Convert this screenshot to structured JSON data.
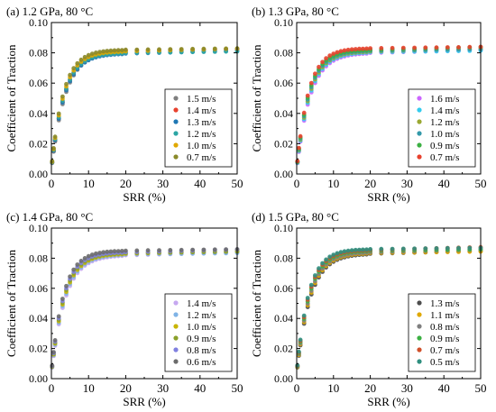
{
  "chart_data": [
    {
      "type": "scatter",
      "title": "(a) 1.2 GPa, 80 °C",
      "xlabel": "SRR (%)",
      "ylabel": "Coefficient of Traction",
      "xlim": [
        0,
        50
      ],
      "ylim": [
        0.0,
        0.1
      ],
      "xticks": [
        "0",
        "10",
        "20",
        "30",
        "40",
        "50"
      ],
      "yticks": [
        "0.00",
        "0.02",
        "0.04",
        "0.06",
        "0.08",
        "0.10"
      ],
      "legend_position": "bottom-right",
      "series": [
        {
          "name": "1.5 m/s",
          "color": "#7f7f7f",
          "plateau": 0.0805
        },
        {
          "name": "1.4 m/s",
          "color": "#e8412e",
          "plateau": 0.0815
        },
        {
          "name": "1.3 m/s",
          "color": "#1f77b4",
          "plateau": 0.0795
        },
        {
          "name": "1.2 m/s",
          "color": "#2ca6a4",
          "plateau": 0.08
        },
        {
          "name": "1.0 m/s",
          "color": "#e0a800",
          "plateau": 0.081
        },
        {
          "name": "0.7 m/s",
          "color": "#8a8a2a",
          "plateau": 0.082
        }
      ]
    },
    {
      "type": "scatter",
      "title": "(b) 1.3 GPa, 80 °C",
      "xlabel": "SRR (%)",
      "ylabel": "Coefficient of Traction",
      "xlim": [
        0,
        50
      ],
      "ylim": [
        0.0,
        0.1
      ],
      "xticks": [
        "0",
        "10",
        "20",
        "30",
        "40",
        "50"
      ],
      "yticks": [
        "0.00",
        "0.02",
        "0.04",
        "0.06",
        "0.08",
        "0.10"
      ],
      "legend_position": "bottom-right",
      "series": [
        {
          "name": "1.6 m/s",
          "color": "#cc66ff",
          "plateau": 0.08
        },
        {
          "name": "1.4 m/s",
          "color": "#33ccee",
          "plateau": 0.0805
        },
        {
          "name": "1.2 m/s",
          "color": "#9aa832",
          "plateau": 0.081
        },
        {
          "name": "1.0 m/s",
          "color": "#3399aa",
          "plateau": 0.0815
        },
        {
          "name": "0.9 m/s",
          "color": "#3cb043",
          "plateau": 0.082
        },
        {
          "name": "0.7 m/s",
          "color": "#e8412e",
          "plateau": 0.083
        }
      ]
    },
    {
      "type": "scatter",
      "title": "(c) 1.4 GPa, 80 °C",
      "xlabel": "SRR (%)",
      "ylabel": "Coefficient of Traction",
      "xlim": [
        0,
        50
      ],
      "ylim": [
        0.0,
        0.1
      ],
      "xticks": [
        "0",
        "10",
        "20",
        "30",
        "40",
        "50"
      ],
      "yticks": [
        "0.00",
        "0.02",
        "0.04",
        "0.06",
        "0.08",
        "0.10"
      ],
      "legend_position": "bottom-right",
      "series": [
        {
          "name": "1.4 m/s",
          "color": "#c6a8f0",
          "plateau": 0.082
        },
        {
          "name": "1.2 m/s",
          "color": "#7fb3e6",
          "plateau": 0.0825
        },
        {
          "name": "1.0 m/s",
          "color": "#c8b400",
          "plateau": 0.083
        },
        {
          "name": "0.9 m/s",
          "color": "#8aa02a",
          "plateau": 0.0835
        },
        {
          "name": "0.8 m/s",
          "color": "#8080e0",
          "plateau": 0.084
        },
        {
          "name": "0.6 m/s",
          "color": "#6b6b6b",
          "plateau": 0.085
        }
      ]
    },
    {
      "type": "scatter",
      "title": "(d) 1.5 GPa, 80 °C",
      "xlabel": "SRR (%)",
      "ylabel": "Coefficient of Traction",
      "xlim": [
        0,
        50
      ],
      "ylim": [
        0.0,
        0.1
      ],
      "xticks": [
        "0",
        "10",
        "20",
        "30",
        "40",
        "50"
      ],
      "yticks": [
        "0.00",
        "0.02",
        "0.04",
        "0.06",
        "0.08",
        "0.10"
      ],
      "legend_position": "bottom-right",
      "series": [
        {
          "name": "1.3 m/s",
          "color": "#4d4d4d",
          "plateau": 0.083
        },
        {
          "name": "1.1 m/s",
          "color": "#e0a800",
          "plateau": 0.0835
        },
        {
          "name": "0.8 m/s",
          "color": "#7f7f7f",
          "plateau": 0.084
        },
        {
          "name": "0.9 m/s",
          "color": "#3cb043",
          "plateau": 0.085
        },
        {
          "name": "0.7 m/s",
          "color": "#d0502a",
          "plateau": 0.0855
        },
        {
          "name": "0.5 m/s",
          "color": "#2f8f7f",
          "plateau": 0.086
        }
      ]
    }
  ]
}
